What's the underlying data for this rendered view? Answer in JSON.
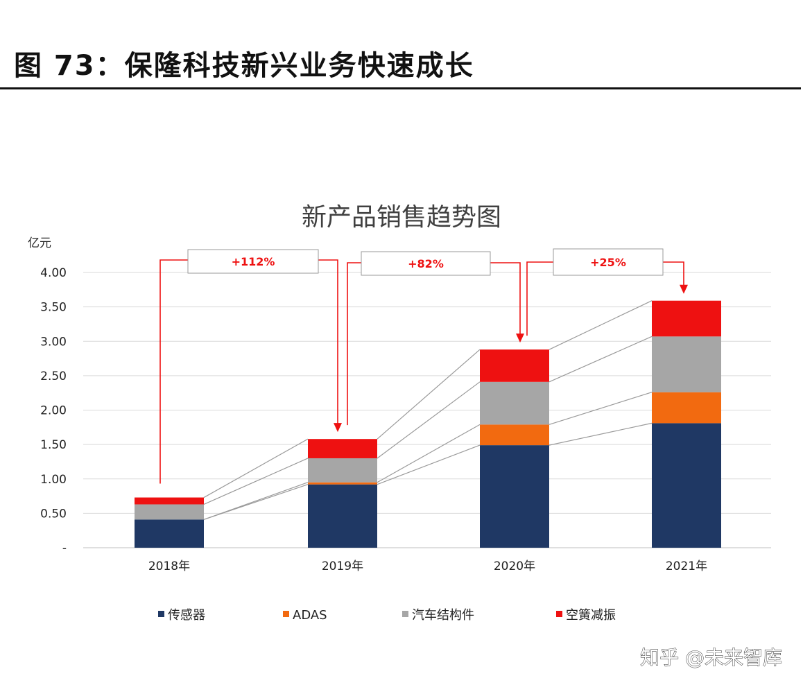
{
  "figure": {
    "title": "图 73：保隆科技新兴业务快速成长"
  },
  "chart_data": {
    "type": "bar",
    "stacked": true,
    "title": "新产品销售趋势图",
    "ylabel": "亿元",
    "ylim": [
      0,
      4.0
    ],
    "yticks": [
      "-",
      "0.50",
      "1.00",
      "1.50",
      "2.00",
      "2.50",
      "3.00",
      "3.50",
      "4.00"
    ],
    "grid": true,
    "legend_position": "bottom",
    "categories": [
      "2018年",
      "2019年",
      "2020年",
      "2021年"
    ],
    "series": [
      {
        "name": "传感器",
        "color": "#1f3864",
        "values": [
          0.41,
          0.92,
          1.49,
          1.81
        ]
      },
      {
        "name": "ADAS",
        "color": "#f26a10",
        "values": [
          0.0,
          0.03,
          0.3,
          0.45
        ]
      },
      {
        "name": "汽车结构件",
        "color": "#a6a6a6",
        "values": [
          0.22,
          0.35,
          0.62,
          0.81
        ]
      },
      {
        "name": "空簧减振",
        "color": "#ee1111",
        "values": [
          0.1,
          0.28,
          0.47,
          0.52
        ]
      }
    ],
    "growth_annotations": [
      {
        "from": "2018年",
        "to": "2019年",
        "label": "+112%"
      },
      {
        "from": "2019年",
        "to": "2020年",
        "label": "+82%"
      },
      {
        "from": "2020年",
        "to": "2021年",
        "label": "+25%"
      }
    ]
  },
  "watermark": {
    "text": "知乎 @未来智库"
  }
}
